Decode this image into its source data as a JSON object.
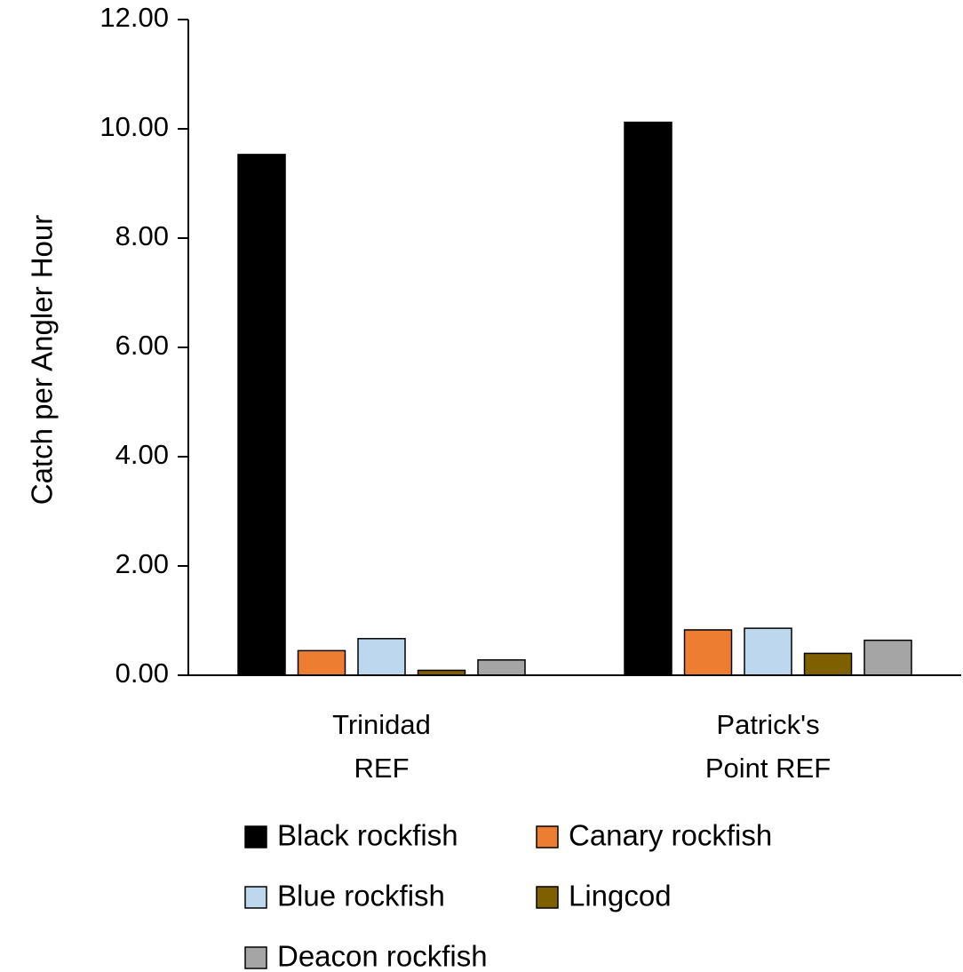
{
  "chart_data": {
    "type": "bar",
    "title": "",
    "xlabel": "",
    "ylabel": "Catch per Angler Hour",
    "ylim": [
      0,
      12
    ],
    "yticks": [
      "0.00",
      "2.00",
      "4.00",
      "6.00",
      "8.00",
      "10.00",
      "12.00"
    ],
    "grid": false,
    "legend_position": "bottom",
    "categories": [
      [
        "Trinidad",
        "REF"
      ],
      [
        "Patrick's",
        "Point REF"
      ]
    ],
    "series": [
      {
        "name": "Black rockfish",
        "color": "#000000",
        "values": [
          9.53,
          10.12
        ]
      },
      {
        "name": "Canary rockfish",
        "color": "#ED7D31",
        "values": [
          0.45,
          0.83
        ]
      },
      {
        "name": "Blue rockfish",
        "color": "#BDD7EE",
        "values": [
          0.67,
          0.86
        ]
      },
      {
        "name": "Lingcod",
        "color": "#7F6000",
        "values": [
          0.09,
          0.4
        ]
      },
      {
        "name": "Deacon rockfish",
        "color": "#A5A5A5",
        "values": [
          0.28,
          0.64
        ]
      }
    ]
  }
}
